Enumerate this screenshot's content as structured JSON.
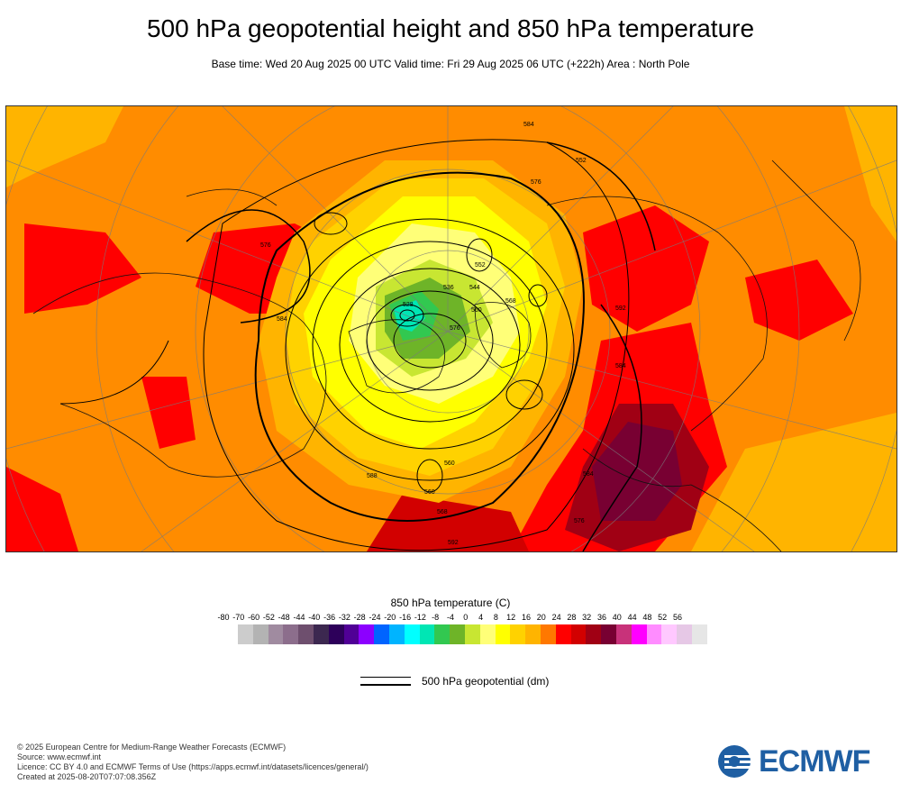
{
  "header": {
    "title": "500 hPa geopotential height and 850 hPa temperature",
    "subtitle": "Base time: Wed 20 Aug 2025 00 UTC Valid time: Fri 29 Aug 2025 06 UTC (+222h) Area : North Pole"
  },
  "map": {
    "contour_labels": [
      "528",
      "536",
      "544",
      "552",
      "560",
      "568",
      "576",
      "584",
      "592",
      "552",
      "576",
      "584",
      "560",
      "568",
      "588",
      "576",
      "584",
      "592",
      "584",
      "576",
      "560"
    ]
  },
  "legend": {
    "title": "850 hPa temperature (C)",
    "ticks": [
      "-80",
      "-70",
      "-60",
      "-52",
      "-48",
      "-44",
      "-40",
      "-36",
      "-32",
      "-28",
      "-24",
      "-20",
      "-16",
      "-12",
      "-8",
      "-4",
      "0",
      "4",
      "8",
      "12",
      "16",
      "20",
      "24",
      "28",
      "32",
      "36",
      "40",
      "44",
      "48",
      "52",
      "56"
    ],
    "colors": [
      "#e6e6e6",
      "#cccccc",
      "#b3b3b3",
      "#a08ba0",
      "#8c6e8c",
      "#6e4f6e",
      "#3c2850",
      "#2d005a",
      "#500096",
      "#8c00ff",
      "#0064ff",
      "#00b4ff",
      "#00ffff",
      "#00e6b4",
      "#32c850",
      "#6eb428",
      "#c8e632",
      "#ffff78",
      "#ffff00",
      "#ffd200",
      "#ffb400",
      "#ff7800",
      "#ff0000",
      "#d20000",
      "#a00014",
      "#780032",
      "#c8327a",
      "#ff00ff",
      "#ff8cff",
      "#ffc8ff",
      "#e6c8e6",
      "#e6e6e6"
    ],
    "line_label": "500 hPa geopotential (dm)"
  },
  "footer": {
    "line1": "© 2025 European Centre for Medium-Range Weather Forecasts (ECMWF)",
    "line2": "Source: www.ecmwf.int",
    "line3": "Licence: CC BY 4.0 and ECMWF Terms of Use (https://apps.ecmwf.int/datasets/licences/general/)",
    "line4": "Created at 2025-08-20T07:07:08.356Z"
  },
  "logo": {
    "text": "ECMWF",
    "color": "#1f5fa3"
  }
}
